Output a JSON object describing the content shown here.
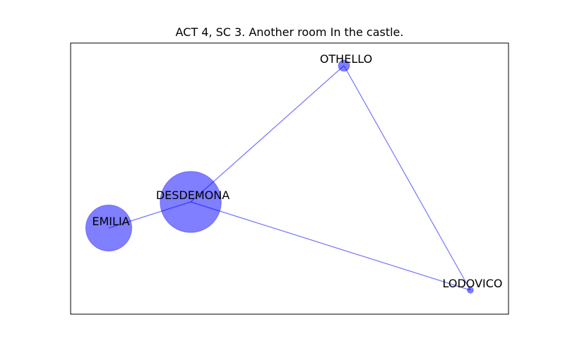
{
  "title": "ACT 4, SC 3. Another room In the castle.",
  "colors": {
    "node_fill": "#0000ff",
    "edge": "#0000ff",
    "frame": "#000000",
    "label": "#000000"
  },
  "nodes": [
    {
      "id": "OTHELLO",
      "label": "OTHELLO",
      "weight": 1
    },
    {
      "id": "DESDEMONA",
      "label": "DESDEMONA",
      "weight": 30
    },
    {
      "id": "EMILIA",
      "label": "EMILIA",
      "weight": 17
    },
    {
      "id": "LODOVICO",
      "label": "LODOVICO",
      "weight": 0.3
    }
  ],
  "edges": [
    {
      "source": "DESDEMONA",
      "target": "OTHELLO"
    },
    {
      "source": "DESDEMONA",
      "target": "LODOVICO"
    },
    {
      "source": "DESDEMONA",
      "target": "EMILIA"
    },
    {
      "source": "OTHELLO",
      "target": "LODOVICO"
    }
  ]
}
